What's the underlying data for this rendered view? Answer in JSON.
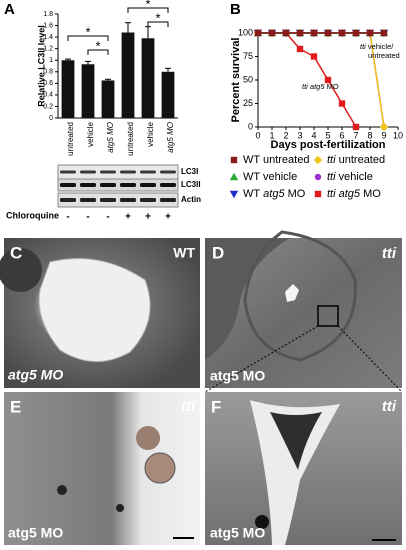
{
  "chart_data": [
    {
      "type": "bar",
      "panel": "A",
      "y_label": "Relative LC3II level",
      "categories": [
        "untreated",
        "vehicle",
        "atg5 MO",
        "untreated",
        "vehicle",
        "atg5 MO"
      ],
      "values": [
        1.0,
        0.93,
        0.65,
        1.48,
        1.38,
        0.8
      ],
      "errors": [
        0.02,
        0.05,
        0.02,
        0.17,
        0.2,
        0.06
      ],
      "color": "#111111",
      "ylim": [
        0,
        1.8
      ],
      "yticks": [
        0,
        0.2,
        0.4,
        0.6,
        0.8,
        1,
        1.2,
        1.4,
        1.6,
        1.8
      ],
      "annotations": [
        "*",
        "*",
        "*",
        "*"
      ],
      "blot_rows": [
        "LC3I",
        "LC3II",
        "Actin"
      ],
      "treatment_label": "Chloroquine",
      "treatment": [
        "-",
        "-",
        "-",
        "+",
        "+",
        "+"
      ]
    },
    {
      "type": "line",
      "panel": "B",
      "x_label": "Days post-fertilization",
      "y_label": "Percent survival",
      "x": [
        0,
        1,
        2,
        3,
        4,
        5,
        6,
        7,
        8,
        9
      ],
      "xlim": [
        0,
        10
      ],
      "xticks": [
        0,
        1,
        2,
        3,
        4,
        5,
        6,
        7,
        8,
        9,
        10
      ],
      "ylim": [
        0,
        100
      ],
      "yticks": [
        0,
        25,
        50,
        75,
        100
      ],
      "annotations": [
        [
          "tti vehicle/",
          "untreated"
        ],
        "tti atg5 MO"
      ],
      "series": [
        {
          "name": "WT untreated",
          "color": "#8b1a1a",
          "marker": "square",
          "values": [
            100,
            100,
            100,
            100,
            100,
            100,
            100,
            100,
            100,
            100
          ]
        },
        {
          "name": "WT vehicle",
          "color": "#2ea836",
          "marker": "triangle-up",
          "values": [
            100,
            100,
            100,
            100,
            100,
            100,
            100,
            100,
            100,
            100
          ]
        },
        {
          "name": "WT atg5 MO",
          "color": "#1a2fcc",
          "marker": "triangle-down",
          "values": [
            100,
            100,
            100,
            100,
            100,
            100,
            100,
            100,
            100,
            100
          ]
        },
        {
          "name": "tti untreated",
          "color": "#f2c618",
          "marker": "diamond",
          "values": [
            100,
            100,
            100,
            100,
            100,
            100,
            100,
            100,
            100,
            0
          ]
        },
        {
          "name": "tti vehicle",
          "color": "#9b2fd0",
          "marker": "circle",
          "values": [
            100,
            100,
            100,
            100,
            100,
            100,
            100,
            100,
            100,
            0
          ]
        },
        {
          "name": "tti atg5 MO",
          "color": "#e01b1b",
          "marker": "square",
          "values": [
            100,
            100,
            100,
            83,
            75,
            50,
            25,
            0,
            null,
            null
          ]
        }
      ]
    }
  ],
  "panels": [
    {
      "letter": "C",
      "genotype": "WT",
      "treatment": "atg5 MO"
    },
    {
      "letter": "D",
      "genotype": "tti",
      "treatment": "atg5 MO"
    },
    {
      "letter": "E",
      "genotype": "tti",
      "treatment": "atg5 MO"
    },
    {
      "letter": "F",
      "genotype": "tti",
      "treatment": "atg5 MO"
    }
  ]
}
